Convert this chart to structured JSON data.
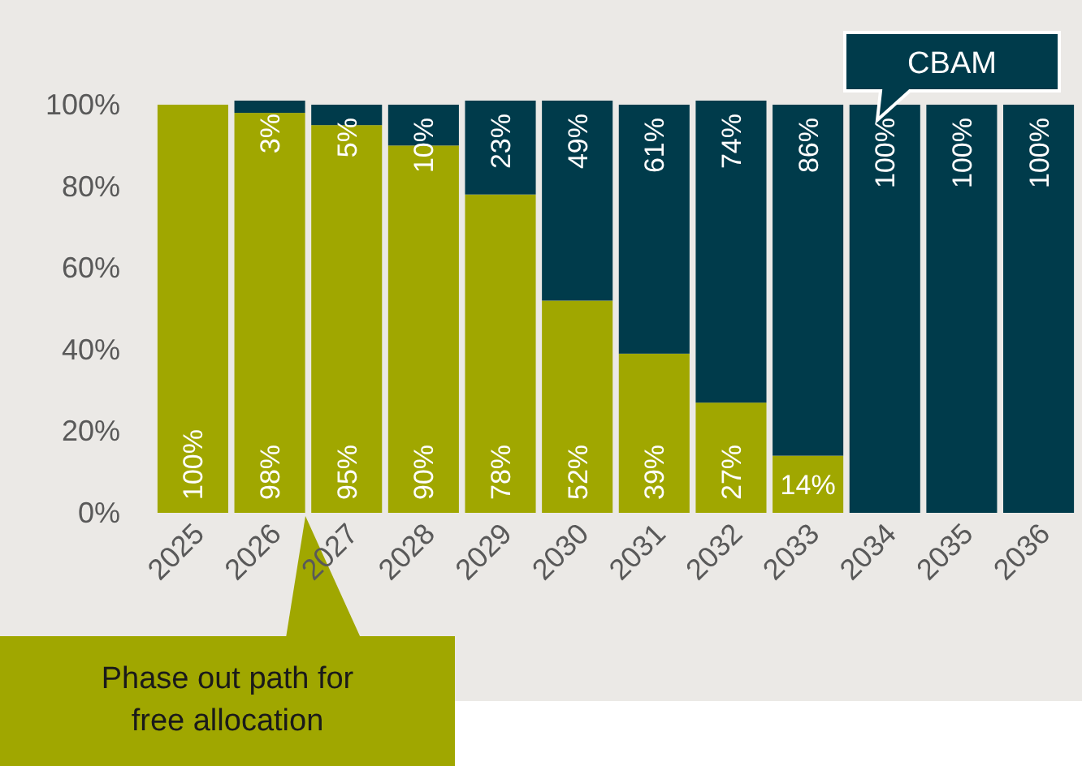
{
  "chart_data": {
    "type": "bar",
    "stacked": true,
    "categories": [
      "2025",
      "2026",
      "2027",
      "2028",
      "2029",
      "2030",
      "2031",
      "2032",
      "2033",
      "2034",
      "2035",
      "2036"
    ],
    "series": [
      {
        "color": "#a0a700",
        "values": [
          100,
          98,
          95,
          90,
          78,
          52,
          39,
          27,
          14,
          0,
          0,
          0
        ],
        "value_labels": [
          "100%",
          "98%",
          "95%",
          "90%",
          "78%",
          "52%",
          "39%",
          "27%",
          "14%",
          null,
          null,
          null
        ]
      },
      {
        "color": "#003b4b",
        "values": [
          0,
          3,
          5,
          10,
          23,
          49,
          61,
          74,
          86,
          100,
          100,
          100
        ],
        "value_labels": [
          null,
          "3%",
          "5%",
          "10%",
          "23%",
          "49%",
          "61%",
          "74%",
          "86%",
          "100%",
          "100%",
          "100%"
        ]
      }
    ],
    "ylim": [
      0,
      101
    ],
    "yticks": [
      {
        "value": 0,
        "label": "0%"
      },
      {
        "value": 20,
        "label": "20%"
      },
      {
        "value": 40,
        "label": "40%"
      },
      {
        "value": 60,
        "label": "60%"
      },
      {
        "value": 80,
        "label": "80%"
      },
      {
        "value": 100,
        "label": "100%"
      }
    ],
    "annotations": [
      "CBAM",
      "Phase out path for free allocation"
    ]
  }
}
